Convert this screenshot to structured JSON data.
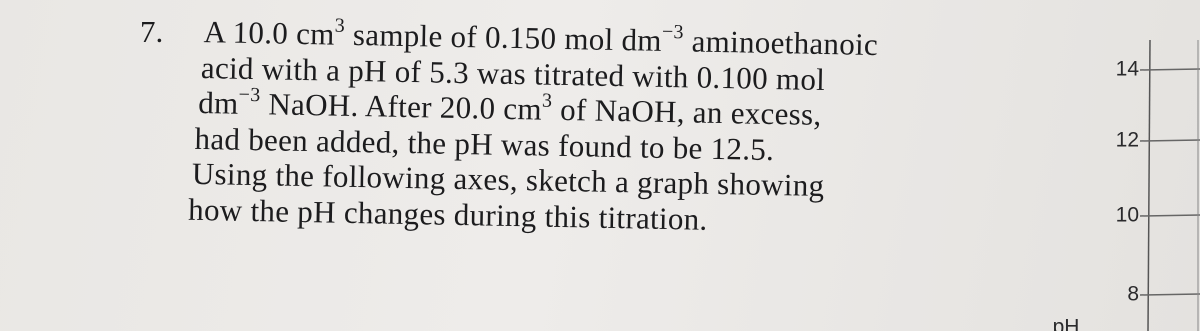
{
  "question": {
    "number": "7.",
    "lines": [
      [
        "A 10.0 cm",
        "3",
        " sample of 0.150 mol dm",
        "−3",
        " aminoethanoic"
      ],
      [
        "acid with a pH of 5.3 was titrated with 0.100 mol"
      ],
      [
        "dm",
        "−3",
        " NaOH. After 20.0 cm",
        "3",
        " of NaOH, an excess,"
      ],
      [
        "had been added, the pH was found to be 12.5."
      ],
      [
        "Using the following axes, sketch a graph showing"
      ],
      [
        "how the pH changes during this titration."
      ]
    ]
  },
  "axes": {
    "y_label": "pH",
    "y_ticks": [
      14,
      12,
      10,
      8
    ]
  }
}
